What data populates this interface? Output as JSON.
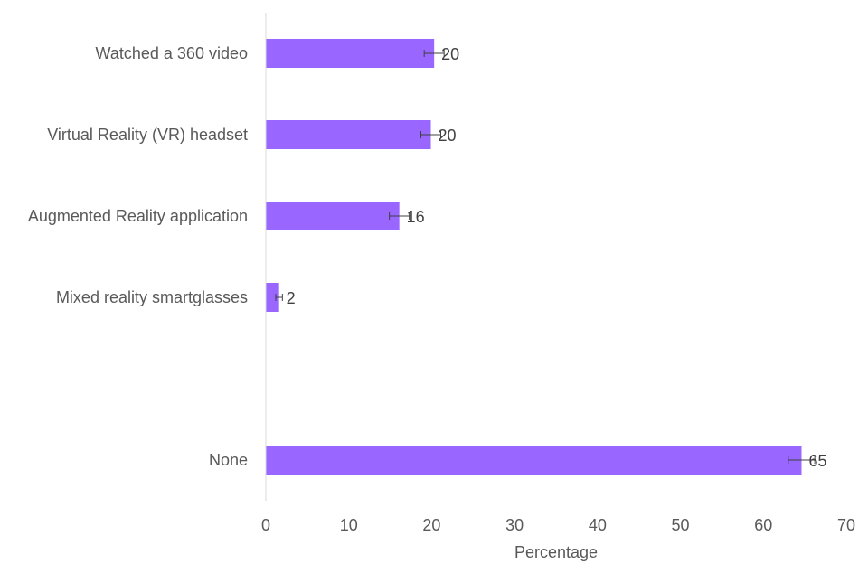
{
  "chart_data": {
    "type": "bar",
    "orientation": "horizontal",
    "categories": [
      "Watched a 360 video",
      "Virtual Reality (VR) headset",
      "Augmented Reality application",
      "Mixed reality smartglasses",
      "",
      "None"
    ],
    "series": [
      {
        "values": [
          20.3,
          19.9,
          16.1,
          1.6,
          null,
          64.6
        ],
        "data_labels": [
          "20",
          "20",
          "16",
          "2",
          "",
          "65"
        ],
        "error": [
          1.2,
          1.2,
          1.2,
          0.4,
          null,
          1.6
        ],
        "color": "#9966ff"
      }
    ],
    "xlabel": "Percentage",
    "ylabel": "",
    "xlim": [
      0,
      70
    ],
    "x_ticks": [
      "0",
      "10",
      "20",
      "30",
      "40",
      "50",
      "60",
      "70"
    ],
    "grid": false,
    "legend": "none",
    "colors": {
      "bar": "#9966ff",
      "axis": "#d9d9d9",
      "error_bar": "#404040",
      "text": "#595959"
    }
  }
}
